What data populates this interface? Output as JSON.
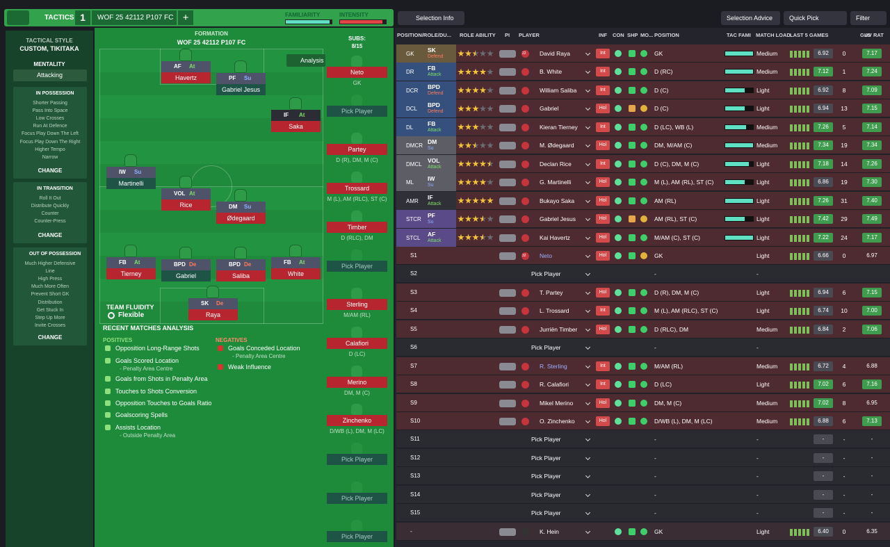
{
  "header": {
    "tab": "TACTICS",
    "slot": "1",
    "tactic_name": "WOF 25 42112 P107 FC",
    "add": "+",
    "familiarity_label": "FAMILIARITY",
    "familiarity": 0.95,
    "intensity_label": "INTENSITY",
    "intensity": 0.92
  },
  "sidebar": {
    "style_label": "TACTICAL STYLE",
    "style_value": "CUSTOM, TIKITAKA",
    "mentality_label": "MENTALITY",
    "mentality_value": "Attacking",
    "sections": [
      {
        "title": "IN POSSESSION",
        "items": [
          "Shorter Passing",
          "Pass Into Space",
          "Low Crosses",
          "Run At Defence",
          "Focus Play Down The Left",
          "Focus Play Down The Right",
          "Higher Tempo",
          "Narrow"
        ],
        "action": "CHANGE"
      },
      {
        "title": "IN TRANSITION",
        "items": [
          "Roll It Out",
          "Distribute Quickly",
          "Counter",
          "Counter-Press"
        ],
        "action": "CHANGE"
      },
      {
        "title": "OUT OF POSSESSION",
        "items": [
          "Much Higher Defensive",
          "Line",
          "High Press",
          "Much More Often",
          "Prevent Short GK",
          "Distribution",
          "Get Stuck In",
          "Step Up More",
          "Invite Crosses"
        ],
        "action": "CHANGE"
      }
    ]
  },
  "pitch": {
    "formation_label": "FORMATION",
    "formation_name": "WOF 25 42112 P107 FC",
    "analysis": "Analysis",
    "fluidity_label": "TEAM FLUIDITY",
    "fluidity_value": "Flexible",
    "players": [
      {
        "role": "AF",
        "duty": "At",
        "name": "Havertz"
      },
      {
        "role": "PF",
        "duty": "Su",
        "name": "Gabriel Jesus"
      },
      {
        "role": "IF",
        "duty": "At",
        "name": "Saka"
      },
      {
        "role": "IW",
        "duty": "Su",
        "name": "Martinelli"
      },
      {
        "role": "VOL",
        "duty": "At",
        "name": "Rice"
      },
      {
        "role": "DM",
        "duty": "Su",
        "name": "Ødegaard"
      },
      {
        "role": "FB",
        "duty": "At",
        "name": "Tierney"
      },
      {
        "role": "BPD",
        "duty": "De",
        "name": "Gabriel"
      },
      {
        "role": "BPD",
        "duty": "De",
        "name": "Saliba"
      },
      {
        "role": "FB",
        "duty": "At",
        "name": "White"
      },
      {
        "role": "SK",
        "duty": "De",
        "name": "Raya"
      }
    ]
  },
  "subs": {
    "label": "SUBS:",
    "count": "8/15",
    "list": [
      {
        "name": "Neto",
        "positions": "GK"
      },
      {
        "name": "Pick Player"
      },
      {
        "name": "Partey",
        "positions": "D (R), DM, M (C)"
      },
      {
        "name": "Trossard",
        "positions": "M (L), AM (RLC), ST (C)"
      },
      {
        "name": "Timber",
        "positions": "D (RLC), DM"
      },
      {
        "name": "Pick Player"
      },
      {
        "name": "Sterling",
        "positions": "M/AM (RL)"
      },
      {
        "name": "Calafiori",
        "positions": "D (LC)"
      },
      {
        "name": "Merino",
        "positions": "DM, M (C)"
      },
      {
        "name": "Zinchenko",
        "positions": "D/WB (L), DM, M (LC)"
      },
      {
        "name": "Pick Player"
      },
      {
        "name": "Pick Player"
      },
      {
        "name": "Pick Player"
      }
    ]
  },
  "analysis": {
    "title": "RECENT MATCHES ANALYSIS",
    "positives_label": "POSITIVES",
    "negatives_label": "NEGATIVES",
    "positives": [
      {
        "text": "Opposition Long-Range Shots"
      },
      {
        "text": "Goals Scored Location",
        "detail": "- Penalty Area Centre"
      },
      {
        "text": "Goals from Shots in Penalty Area"
      },
      {
        "text": "Touches to Shots Conversion"
      },
      {
        "text": "Opposition Touches to Goals Ratio"
      },
      {
        "text": "Goalscoring Spells"
      },
      {
        "text": "Assists Location",
        "detail": "- Outside Penalty Area"
      }
    ],
    "negatives": [
      {
        "text": "Goals Conceded Location",
        "detail": "- Penalty Area Centre"
      },
      {
        "text": "Weak Influence"
      }
    ]
  },
  "toolbar": {
    "selection_info": "Selection Info",
    "selection_advice": "Selection Advice",
    "quick_pick": "Quick Pick",
    "filter": "Filter"
  },
  "table": {
    "headers": [
      "POSITION/ROLE/DU...",
      "ROLE ABILITY",
      "PI",
      "PLAYER",
      "INF",
      "CON",
      "SHP",
      "MO...",
      "POSITION",
      "TAC FAMI",
      "MATCH LOAD",
      "LAST 5 GAMES",
      "GLS",
      "AV RAT"
    ],
    "rows": [
      {
        "pos": "GK",
        "role": "SK",
        "duty": "Defend",
        "stars": 2.5,
        "shirt": "22",
        "player": "David Raya",
        "inf": "Int",
        "position": "GK",
        "tac": 1.0,
        "load": "Medium",
        "rating": "6.92",
        "gls": "0",
        "avrat": "7.17"
      },
      {
        "pos": "DR",
        "role": "FB",
        "duty": "Attack",
        "stars": 4,
        "player": "B. White",
        "inf": "Int",
        "position": "D (RC)",
        "tac": 1.0,
        "load": "Medium",
        "rating": "7.12",
        "gls": "1",
        "avrat": "7.24"
      },
      {
        "pos": "DCR",
        "role": "BPD",
        "duty": "Defend",
        "stars": 4,
        "player": "William Saliba",
        "inf": "Int",
        "position": "D (C)",
        "tac": 0.7,
        "load": "Light",
        "rating": "6.92",
        "gls": "8",
        "avrat": "7.09"
      },
      {
        "pos": "DCL",
        "role": "BPD",
        "duty": "Defend",
        "stars": 3,
        "player": "Gabriel",
        "inf": "Hol",
        "position": "D (C)",
        "tac": 0.7,
        "load": "Light",
        "rating": "6.94",
        "gls": "13",
        "avrat": "7.15"
      },
      {
        "pos": "DL",
        "role": "FB",
        "duty": "Attack",
        "stars": 3,
        "player": "Kieran Tierney",
        "inf": "Int",
        "position": "D (LC), WB (L)",
        "tac": 0.75,
        "load": "Medium",
        "rating": "7.26",
        "gls": "5",
        "avrat": "7.14"
      },
      {
        "pos": "DMCR",
        "role": "DM",
        "duty": "Su",
        "stars": 2.5,
        "player": "M. Ødegaard",
        "inf": "Hol",
        "position": "DM, M/AM (C)",
        "tac": 1.0,
        "load": "Medium",
        "rating": "7.34",
        "gls": "19",
        "avrat": "7.34"
      },
      {
        "pos": "DMCL",
        "role": "VOL",
        "duty": "Attack",
        "stars": 4.5,
        "player": "Declan Rice",
        "inf": "Int",
        "position": "D (C), DM, M (C)",
        "tac": 0.85,
        "load": "Light",
        "rating": "7.18",
        "gls": "14",
        "avrat": "7.26"
      },
      {
        "pos": "ML",
        "role": "IW",
        "duty": "Su",
        "stars": 4,
        "player": "G. Martinelli",
        "inf": "Hol",
        "position": "M (L), AM (RL), ST (C)",
        "tac": 0.7,
        "load": "Light",
        "rating": "6.86",
        "gls": "19",
        "avrat": "7.30"
      },
      {
        "pos": "AMR",
        "role": "IF",
        "duty": "Attack",
        "stars": 5,
        "player": "Bukayo Saka",
        "inf": "Hol",
        "position": "AM (RL)",
        "tac": 1.0,
        "load": "Light",
        "rating": "7.26",
        "gls": "31",
        "avrat": "7.40"
      },
      {
        "pos": "STCR",
        "role": "PF",
        "duty": "Su",
        "stars": 3.5,
        "player": "Gabriel Jesus",
        "inf": "Hol",
        "position": "AM (RL), ST (C)",
        "tac": 0.7,
        "load": "Light",
        "rating": "7.42",
        "gls": "29",
        "avrat": "7.49"
      },
      {
        "pos": "STCL",
        "role": "AF",
        "duty": "Attack",
        "stars": 3.5,
        "player": "Kai Havertz",
        "inf": "Hol",
        "position": "M/AM (C), ST (C)",
        "tac": 1.0,
        "load": "Light",
        "rating": "7.22",
        "gls": "24",
        "avrat": "7.17"
      },
      {
        "pos": "S1",
        "shirt": "32",
        "player": "Neto",
        "inf": "Hol",
        "position": "GK",
        "load": "Light",
        "rating": "6.66",
        "gls": "0",
        "avrat": "6.97"
      },
      {
        "pos": "S2",
        "player": "Pick Player",
        "position": "-",
        "load": "-"
      },
      {
        "pos": "S3",
        "player": "T. Partey",
        "inf": "Hol",
        "position": "D (R), DM, M (C)",
        "load": "Light",
        "rating": "6.94",
        "gls": "6",
        "avrat": "7.15"
      },
      {
        "pos": "S4",
        "player": "L. Trossard",
        "inf": "Int",
        "position": "M (L), AM (RLC), ST (C)",
        "load": "Light",
        "rating": "6.74",
        "gls": "10",
        "avrat": "7.00"
      },
      {
        "pos": "S5",
        "player": "Jurriën Timber",
        "inf": "Hol",
        "position": "D (RLC), DM",
        "load": "Medium",
        "rating": "6.84",
        "gls": "2",
        "avrat": "7.06"
      },
      {
        "pos": "S6",
        "player": "Pick Player",
        "position": "-",
        "load": "-"
      },
      {
        "pos": "S7",
        "player": "R. Sterling",
        "inf": "Int",
        "position": "M/AM (RL)",
        "load": "Medium",
        "rating": "6.72",
        "gls": "4",
        "avrat": "6.88"
      },
      {
        "pos": "S8",
        "player": "R. Calafiori",
        "inf": "Int",
        "position": "D (LC)",
        "load": "Light",
        "rating": "7.02",
        "gls": "6",
        "avrat": "7.16"
      },
      {
        "pos": "S9",
        "player": "Mikel Merino",
        "inf": "Hol",
        "position": "DM, M (C)",
        "load": "Medium",
        "rating": "7.02",
        "gls": "8",
        "avrat": "6.95"
      },
      {
        "pos": "S10",
        "player": "O. Zinchenko",
        "inf": "Hol",
        "position": "D/WB (L), DM, M (LC)",
        "load": "Medium",
        "rating": "6.88",
        "gls": "6",
        "avrat": "7.13"
      },
      {
        "pos": "S11",
        "player": "Pick Player",
        "position": "-",
        "load": "-",
        "rating": "-",
        "gls": "-",
        "avrat": "-"
      },
      {
        "pos": "S12",
        "player": "Pick Player",
        "position": "-",
        "load": "-",
        "rating": "-",
        "gls": "-",
        "avrat": "-"
      },
      {
        "pos": "S13",
        "player": "Pick Player",
        "position": "-",
        "load": "-",
        "rating": "-",
        "gls": "-",
        "avrat": "-"
      },
      {
        "pos": "S14",
        "player": "Pick Player",
        "position": "-",
        "load": "-",
        "rating": "-",
        "gls": "-",
        "avrat": "-"
      },
      {
        "pos": "S15",
        "player": "Pick Player",
        "position": "-",
        "load": "-",
        "rating": "-",
        "gls": "-",
        "avrat": "-"
      },
      {
        "pos": "-",
        "player": "K. Hein",
        "position": "GK",
        "load": "Light",
        "rating": "6.40",
        "gls": "0",
        "avrat": "6.35"
      }
    ]
  }
}
